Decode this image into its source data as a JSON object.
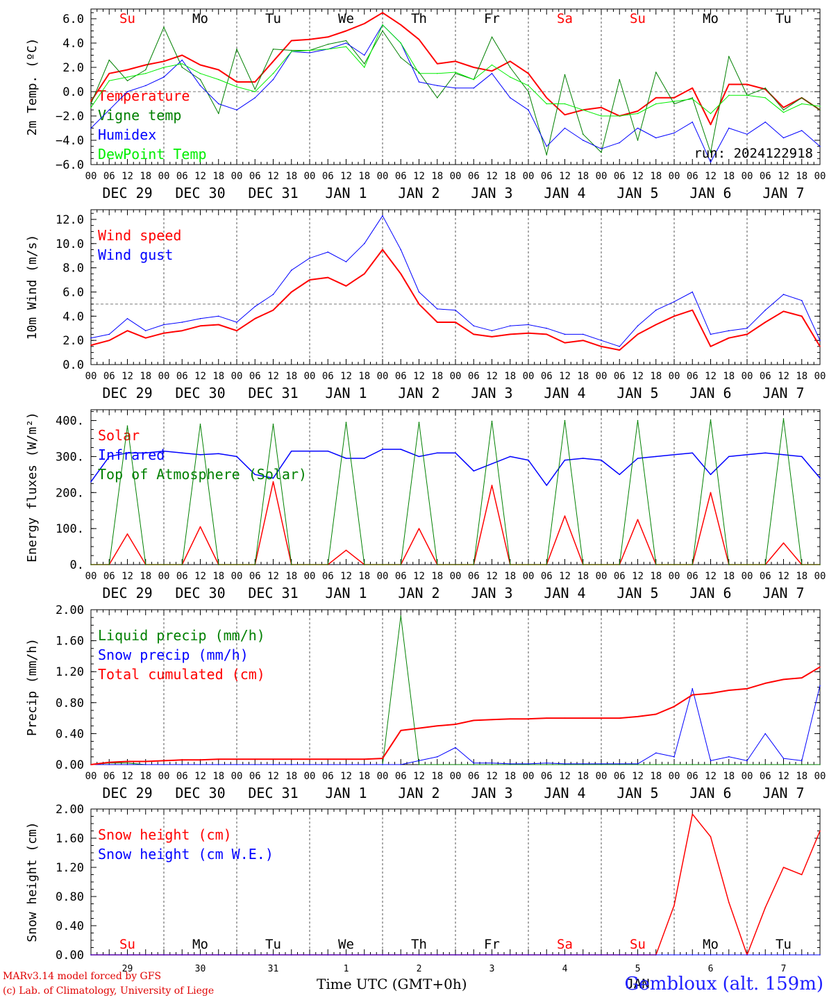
{
  "run_label": "run: 2024122918",
  "station": "Gembloux (alt. 159m)",
  "time_axis_label": "Time UTC (GMT+0h)",
  "credits": [
    "MARv3.14 model forced by GFS",
    "(c) Lab. of Climatology, University of Liege"
  ],
  "bottom_month": "JAN",
  "colors": {
    "red": "#ff0000",
    "green": "#008000",
    "blue": "#0000ff",
    "lightgreen": "#00ee00",
    "dayname_weekend": "#ff0000",
    "dayname_weekday": "#000000",
    "station": "#2020ff"
  },
  "chart_data": {
    "days": [
      {
        "name": "Su",
        "date": "DEC 29",
        "num": "29",
        "weekend": true
      },
      {
        "name": "Mo",
        "date": "DEC 30",
        "num": "30",
        "weekend": false
      },
      {
        "name": "Tu",
        "date": "DEC 31",
        "num": "31",
        "weekend": false
      },
      {
        "name": "We",
        "date": "JAN  1",
        "num": "1",
        "weekend": false
      },
      {
        "name": "Th",
        "date": "JAN  2",
        "num": "2",
        "weekend": false
      },
      {
        "name": "Fr",
        "date": "JAN  3",
        "num": "3",
        "weekend": false
      },
      {
        "name": "Sa",
        "date": "JAN  4",
        "num": "4",
        "weekend": true
      },
      {
        "name": "Su",
        "date": "JAN  5",
        "num": "5",
        "weekend": true
      },
      {
        "name": "Mo",
        "date": "JAN  6",
        "num": "6",
        "weekend": false
      },
      {
        "name": "Tu",
        "date": "JAN  7",
        "num": "7",
        "weekend": false
      }
    ],
    "hour_ticks": [
      "00",
      "06",
      "12",
      "18"
    ],
    "x_hours": [
      0,
      6,
      12,
      18,
      24,
      30,
      36,
      42,
      48,
      54,
      60,
      66,
      72,
      78,
      84,
      90,
      96,
      102,
      108,
      114,
      120,
      126,
      132,
      138,
      144,
      150,
      156,
      162,
      168,
      174,
      180,
      186,
      192,
      198,
      204,
      210,
      216,
      222,
      228,
      234,
      240
    ],
    "panels": [
      {
        "id": "temperature",
        "type": "line",
        "ylabel": "2m Temp. (ºC)",
        "ylim": [
          -6,
          6.8
        ],
        "yticks": [
          -6,
          -4,
          -2,
          0,
          2,
          4,
          6
        ],
        "ytick_labels": [
          "−6.0",
          "−4.0",
          "−2.0",
          "0.0",
          "2.0",
          "4.0",
          "6.0"
        ],
        "hline": 0,
        "show_daynames": true,
        "show_run": true,
        "series": [
          {
            "name": "Temperature",
            "color": "#ff0000",
            "width": 2,
            "values": [
              -0.8,
              1.5,
              1.8,
              2.2,
              2.5,
              3.0,
              2.2,
              1.8,
              0.8,
              0.8,
              2.5,
              4.2,
              4.3,
              4.5,
              5.0,
              5.6,
              6.5,
              5.5,
              4.3,
              2.3,
              2.5,
              2.0,
              1.7,
              2.5,
              1.5,
              -0.5,
              -1.9,
              -1.5,
              -1.3,
              -2.0,
              -1.6,
              -0.5,
              -0.5,
              0.3,
              -2.7,
              0.6,
              0.6,
              0.2,
              -1.3,
              -0.5,
              -1.5
            ]
          },
          {
            "name": "Vigne temp",
            "color": "#008000",
            "width": 1,
            "values": [
              -1.0,
              2.6,
              0.9,
              1.8,
              5.3,
              2.0,
              1.0,
              -1.8,
              3.5,
              0.2,
              3.5,
              3.4,
              3.4,
              3.9,
              4.2,
              2.3,
              5.0,
              2.8,
              1.6,
              -0.5,
              1.5,
              1.0,
              4.5,
              2.0,
              0.0,
              -5.2,
              1.4,
              -3.5,
              -5.0,
              1.0,
              -4.0,
              1.6,
              -1.0,
              -0.5,
              -5.0,
              2.9,
              -0.3,
              0.3,
              -1.5,
              -0.5,
              -1.5
            ]
          },
          {
            "name": "Humidex",
            "color": "#0000ff",
            "width": 1,
            "values": [
              -3.0,
              -1.5,
              0.0,
              0.5,
              1.2,
              2.6,
              0.5,
              -1.0,
              -1.5,
              -0.5,
              1.0,
              3.3,
              3.2,
              3.5,
              4.0,
              3.0,
              5.5,
              4.0,
              0.8,
              0.5,
              0.3,
              0.3,
              1.5,
              -0.5,
              -1.5,
              -4.5,
              -3.0,
              -4.0,
              -4.7,
              -4.2,
              -3.0,
              -3.8,
              -3.4,
              -2.5,
              -5.8,
              -3.0,
              -3.5,
              -2.5,
              -3.8,
              -3.2,
              -4.5
            ]
          },
          {
            "name": "DewPoint Temp",
            "color": "#00ee00",
            "width": 1,
            "values": [
              -1.3,
              0.9,
              1.2,
              1.5,
              2.0,
              2.3,
              1.5,
              1.0,
              0.4,
              0.0,
              1.5,
              3.3,
              3.4,
              3.5,
              3.7,
              2.0,
              5.5,
              4.0,
              1.5,
              1.5,
              1.6,
              1.0,
              2.2,
              1.2,
              0.5,
              -1.0,
              -1.0,
              -1.5,
              -2.0,
              -2.0,
              -1.8,
              -1.0,
              -0.8,
              -0.6,
              -1.8,
              -0.3,
              -0.3,
              -0.5,
              -1.7,
              -1.0,
              -1.2
            ]
          }
        ]
      },
      {
        "id": "wind",
        "type": "line",
        "ylabel": "10m Wind (m/s)",
        "ylim": [
          0,
          12.8
        ],
        "yticks": [
          0,
          2,
          4,
          6,
          8,
          10,
          12
        ],
        "ytick_labels": [
          "0.0",
          "2.0",
          "4.0",
          "6.0",
          "8.0",
          "10.0",
          "12.0"
        ],
        "hline": 5,
        "show_daynames": false,
        "show_run": false,
        "series": [
          {
            "name": "Wind speed",
            "color": "#ff0000",
            "width": 2,
            "values": [
              1.6,
              2.0,
              2.8,
              2.2,
              2.6,
              2.8,
              3.2,
              3.3,
              2.8,
              3.8,
              4.5,
              6.0,
              7.0,
              7.2,
              6.5,
              7.5,
              9.5,
              7.5,
              5.0,
              3.5,
              3.5,
              2.5,
              2.3,
              2.5,
              2.6,
              2.5,
              1.8,
              2.0,
              1.5,
              1.2,
              2.5,
              3.3,
              4.0,
              4.5,
              1.5,
              2.2,
              2.5,
              3.5,
              4.4,
              4.0,
              1.5
            ]
          },
          {
            "name": "Wind gust",
            "color": "#0000ff",
            "width": 1,
            "values": [
              2.2,
              2.5,
              3.8,
              2.8,
              3.3,
              3.5,
              3.8,
              4.0,
              3.5,
              4.8,
              5.8,
              7.8,
              8.8,
              9.3,
              8.5,
              10.0,
              12.3,
              9.5,
              6.0,
              4.6,
              4.5,
              3.2,
              2.8,
              3.2,
              3.3,
              3.0,
              2.5,
              2.5,
              2.0,
              1.5,
              3.2,
              4.5,
              5.2,
              6.0,
              2.5,
              2.8,
              3.0,
              4.5,
              5.8,
              5.3,
              2.0
            ]
          }
        ]
      },
      {
        "id": "energy",
        "type": "line",
        "ylabel": "Energy fluxes (W/m²)",
        "ylim": [
          0,
          430
        ],
        "yticks": [
          0,
          100,
          200,
          300,
          400
        ],
        "ytick_labels": [
          "0.",
          "100.",
          "200.",
          "300.",
          "400."
        ],
        "hline": null,
        "show_daynames": false,
        "show_run": false,
        "series": [
          {
            "name": "Solar",
            "color": "#ff0000",
            "width": 1.5,
            "values": [
              0,
              0,
              85,
              0,
              0,
              0,
              105,
              0,
              0,
              0,
              230,
              0,
              0,
              0,
              40,
              0,
              0,
              0,
              100,
              0,
              0,
              0,
              220,
              0,
              0,
              0,
              135,
              0,
              0,
              0,
              125,
              0,
              0,
              0,
              200,
              0,
              0,
              0,
              60,
              0,
              0
            ]
          },
          {
            "name": "Infrared",
            "color": "#0000ff",
            "width": 1.5,
            "values": [
              230,
              300,
              310,
              310,
              315,
              310,
              305,
              308,
              300,
              250,
              240,
              315,
              315,
              315,
              295,
              295,
              320,
              320,
              300,
              310,
              310,
              260,
              280,
              300,
              290,
              220,
              290,
              295,
              290,
              250,
              295,
              300,
              305,
              310,
              250,
              300,
              305,
              310,
              305,
              300,
              240
            ]
          },
          {
            "name": "Top of Atmosphere (Solar)",
            "color": "#008000",
            "width": 1,
            "values": [
              0,
              0,
              385,
              0,
              0,
              0,
              390,
              0,
              0,
              0,
              390,
              0,
              0,
              0,
              395,
              0,
              0,
              0,
              395,
              0,
              0,
              0,
              398,
              0,
              0,
              0,
              400,
              0,
              0,
              0,
              400,
              0,
              0,
              0,
              402,
              0,
              0,
              0,
              405,
              0,
              0
            ]
          }
        ]
      },
      {
        "id": "precip",
        "type": "line",
        "ylabel": "Precip (mm/h)",
        "ylim": [
          0,
          2.0
        ],
        "yticks": [
          0,
          0.4,
          0.8,
          1.2,
          1.6,
          2.0
        ],
        "ytick_labels": [
          "0.00",
          "0.40",
          "0.80",
          "1.20",
          "1.60",
          "2.00"
        ],
        "hline": null,
        "show_daynames": false,
        "show_run": false,
        "series": [
          {
            "name": "Liquid precip (mm/h)",
            "color": "#008000",
            "width": 1,
            "values": [
              0,
              0.02,
              0.02,
              0,
              0,
              0,
              0,
              0,
              0,
              0,
              0,
              0,
              0,
              0,
              0,
              0,
              0,
              1.92,
              0,
              0,
              0,
              0,
              0,
              0,
              0,
              0,
              0,
              0,
              0,
              0,
              0,
              0,
              0,
              0,
              0,
              0,
              0,
              0,
              0,
              0,
              0
            ]
          },
          {
            "name": "Snow precip (mm/h)",
            "color": "#0000ff",
            "width": 1,
            "values": [
              0,
              0,
              0,
              0,
              0,
              0,
              0,
              0,
              0,
              0,
              0,
              0,
              0,
              0,
              0,
              0,
              0,
              0,
              0.05,
              0.1,
              0.22,
              0.02,
              0.02,
              0.01,
              0.01,
              0.02,
              0.01,
              0.01,
              0.01,
              0.01,
              0.01,
              0.15,
              0.1,
              0.98,
              0.05,
              0.1,
              0.05,
              0.4,
              0.08,
              0.05,
              1.02
            ]
          },
          {
            "name": "Total cumulated (cm)",
            "color": "#ff0000",
            "width": 2,
            "values": [
              0,
              0.03,
              0.04,
              0.04,
              0.05,
              0.06,
              0.06,
              0.07,
              0.07,
              0.07,
              0.07,
              0.07,
              0.07,
              0.07,
              0.07,
              0.07,
              0.08,
              0.44,
              0.47,
              0.5,
              0.52,
              0.57,
              0.58,
              0.59,
              0.59,
              0.6,
              0.6,
              0.6,
              0.6,
              0.6,
              0.62,
              0.65,
              0.75,
              0.9,
              0.92,
              0.96,
              0.98,
              1.05,
              1.1,
              1.12,
              1.26
            ]
          }
        ]
      },
      {
        "id": "snow",
        "type": "line",
        "ylabel": "Snow height (cm)",
        "ylim": [
          0,
          2.0
        ],
        "yticks": [
          0,
          0.4,
          0.8,
          1.2,
          1.6,
          2.0
        ],
        "ytick_labels": [
          "0.00",
          "0.40",
          "0.80",
          "1.20",
          "1.60",
          "2.00"
        ],
        "hline": null,
        "show_daynames": false,
        "show_run": false,
        "bottom_daynames": true,
        "series": [
          {
            "name": "Snow height (cm)",
            "color": "#ff0000",
            "width": 1.5,
            "values": [
              0,
              0,
              0,
              0,
              0,
              0,
              0,
              0,
              0,
              0,
              0,
              0,
              0,
              0,
              0,
              0,
              0,
              0,
              0,
              0,
              0,
              0,
              0,
              0,
              0,
              0,
              0,
              0,
              0,
              0,
              0,
              0,
              0.68,
              1.93,
              1.62,
              0.72,
              0,
              0.65,
              1.2,
              1.1,
              1.7
            ]
          },
          {
            "name": "Snow height (cm W.E.)",
            "color": "#0000ff",
            "width": 1,
            "values": [
              0,
              0,
              0,
              0,
              0,
              0,
              0,
              0,
              0,
              0,
              0,
              0,
              0,
              0,
              0,
              0,
              0,
              0,
              0,
              0,
              0,
              0,
              0,
              0,
              0,
              0,
              0,
              0,
              0,
              0,
              0,
              0,
              0,
              0,
              0,
              0,
              0,
              0,
              0,
              0,
              0
            ]
          }
        ]
      }
    ]
  }
}
